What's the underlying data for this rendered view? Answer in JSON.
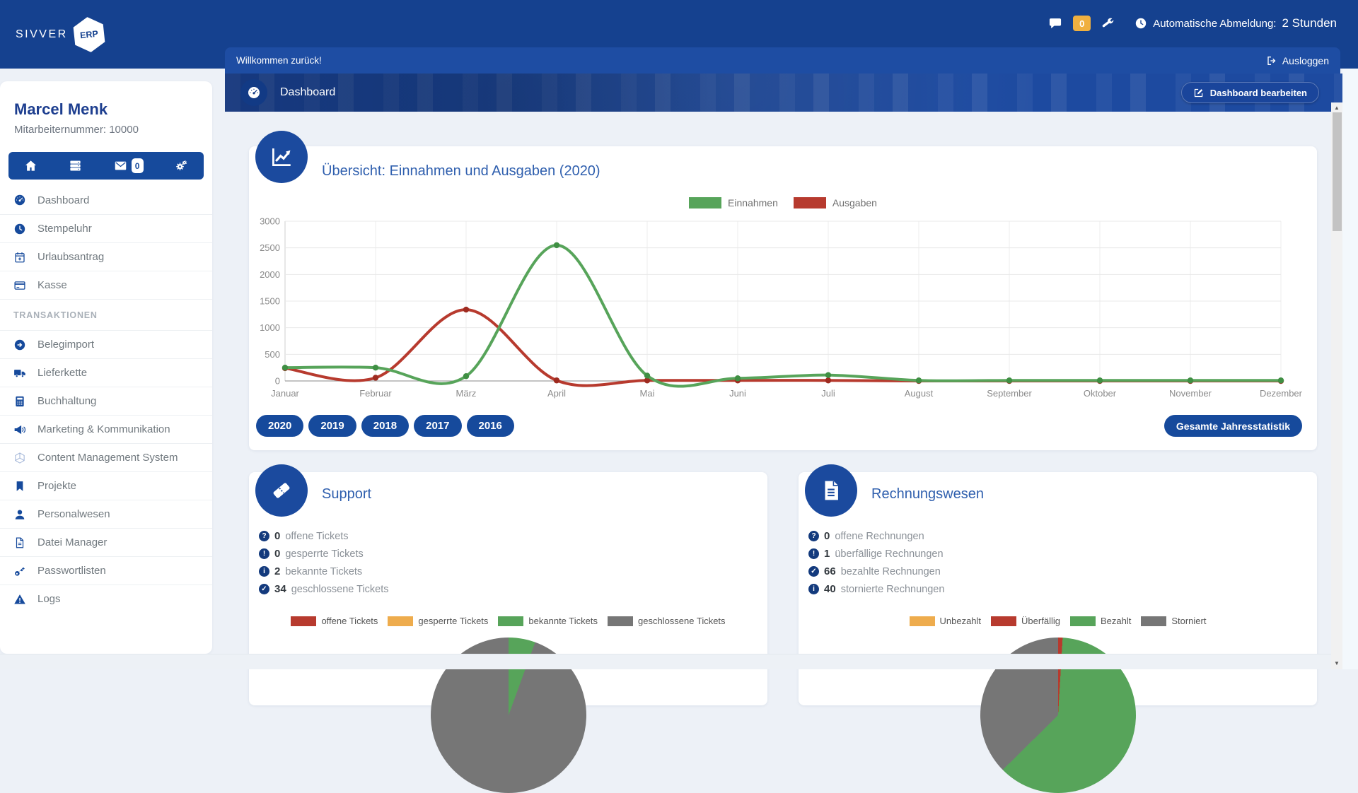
{
  "theme": {
    "accent": "#164a9c",
    "topbar": "#15418f",
    "badge_yellow": "#f0b040",
    "title_blue": "#2f5fae"
  },
  "topbar": {
    "brand": "SIVVER",
    "brand_badge": "ERP",
    "chat_badge": "0",
    "auto_logout_label": "Automatische Abmeldung:",
    "auto_logout_value": "2 Stunden"
  },
  "welcome": {
    "text": "Willkommen zurück!",
    "logout": "Ausloggen"
  },
  "header": {
    "title": "Dashboard",
    "edit_button": "Dashboard bearbeiten"
  },
  "sidebar": {
    "name": "Marcel Menk",
    "employee": "Mitarbeiternummer: 10000",
    "mail_badge": "0",
    "menu": [
      {
        "icon": "gauge",
        "label": "Dashboard"
      },
      {
        "icon": "clock",
        "label": "Stempeluhr"
      },
      {
        "icon": "calplus",
        "label": "Urlaubsantrag"
      },
      {
        "icon": "card",
        "label": "Kasse"
      },
      {
        "type": "section",
        "label": "TRANSAKTIONEN"
      },
      {
        "icon": "arrowcircle",
        "label": "Belegimport"
      },
      {
        "icon": "truck",
        "label": "Lieferkette"
      },
      {
        "icon": "calc",
        "label": "Buchhaltung"
      },
      {
        "icon": "horn",
        "label": "Marketing & Kommunikation"
      },
      {
        "icon": "cms",
        "label": "Content Management System"
      },
      {
        "icon": "bookmark",
        "label": "Projekte"
      },
      {
        "icon": "user",
        "label": "Personalwesen"
      },
      {
        "icon": "file",
        "label": "Datei Manager"
      },
      {
        "icon": "key",
        "label": "Passwortlisten"
      },
      {
        "icon": "warn",
        "label": "Logs"
      }
    ]
  },
  "chart_card": {
    "years": [
      "2020",
      "2019",
      "2018",
      "2017",
      "2016"
    ],
    "stats_button": "Gesamte Jahresstatistik"
  },
  "support_card": {
    "title": "Support",
    "stats": [
      {
        "icon": "question",
        "value": "0",
        "label": "offene Tickets"
      },
      {
        "icon": "exclam",
        "value": "0",
        "label": "gesperrte Tickets"
      },
      {
        "icon": "info",
        "value": "2",
        "label": "bekannte Tickets"
      },
      {
        "icon": "check",
        "value": "34",
        "label": "geschlossene Tickets"
      }
    ]
  },
  "invoice_card": {
    "title": "Rechnungswesen",
    "stats": [
      {
        "icon": "question",
        "value": "0",
        "label": "offene Rechnungen"
      },
      {
        "icon": "exclam",
        "value": "1",
        "label": "überfällige Rechnungen"
      },
      {
        "icon": "check",
        "value": "66",
        "label": "bezahlte Rechnungen"
      },
      {
        "icon": "info",
        "value": "40",
        "label": "stornierte Rechnungen"
      }
    ]
  },
  "chart_data": [
    {
      "id": "income-expenses",
      "type": "line",
      "title": "Übersicht: Einnahmen und Ausgaben (2020)",
      "categories": [
        "Januar",
        "Februar",
        "März",
        "April",
        "Mai",
        "Juni",
        "Juli",
        "August",
        "September",
        "Oktober",
        "November",
        "Dezember"
      ],
      "series": [
        {
          "name": "Einnahmen",
          "color": "#57a45a",
          "point_color": "#3f8f43",
          "values": [
            250,
            250,
            90,
            2550,
            100,
            50,
            110,
            10,
            10,
            10,
            10,
            10
          ]
        },
        {
          "name": "Ausgaben",
          "color": "#b73a2e",
          "point_color": "#9e2b20",
          "values": [
            240,
            60,
            1340,
            10,
            10,
            10,
            10,
            0,
            0,
            0,
            0,
            0
          ]
        }
      ],
      "ylim": [
        0,
        3000
      ],
      "yticks": [
        0,
        500,
        1000,
        1500,
        2000,
        2500,
        3000
      ],
      "grid": true,
      "legend_position": "top"
    },
    {
      "id": "support-tickets",
      "type": "pie",
      "labels": [
        "offene Tickets",
        "gesperrte Tickets",
        "bekannte Tickets",
        "geschlossene Tickets"
      ],
      "values": [
        0,
        0,
        2,
        34
      ],
      "colors": [
        "#b73a2e",
        "#eeac4d",
        "#57a45a",
        "#767676"
      ]
    },
    {
      "id": "invoices",
      "type": "pie",
      "labels": [
        "Unbezahlt",
        "Überfällig",
        "Bezahlt",
        "Storniert"
      ],
      "values": [
        0,
        1,
        66,
        40
      ],
      "colors": [
        "#eeac4d",
        "#b73a2e",
        "#57a45a",
        "#767676"
      ]
    }
  ]
}
